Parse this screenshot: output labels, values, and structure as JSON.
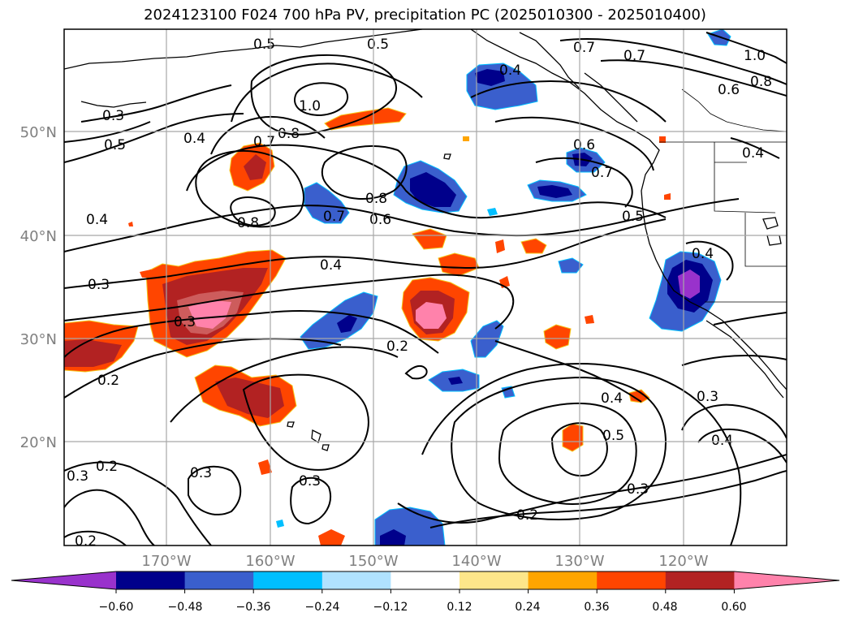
{
  "title": "2024123100 F024 700 hPa PV, precipitation PC (2025010300 - 2025010400)",
  "map": {
    "lat_labels": [
      "50°N",
      "40°N",
      "30°N",
      "20°N"
    ],
    "lon_labels": [
      "170°W",
      "160°W",
      "150°W",
      "140°W",
      "130°W",
      "120°W"
    ],
    "contour_labels": [
      "0.5",
      "0.5",
      "0.4",
      "0.7",
      "0.7",
      "1.0",
      "0.8",
      "0.6",
      "0.3",
      "0.4",
      "0.5",
      "1.0",
      "0.8",
      "0.7",
      "0.6",
      "0.7",
      "0.4",
      "0.8",
      "0.8",
      "0.7",
      "0.6",
      "0.5",
      "0.4",
      "0.4",
      "0.4",
      "0.3",
      "0.3",
      "0.2",
      "0.2",
      "0.4",
      "0.5",
      "0.3",
      "0.4",
      "0.3",
      "0.2",
      "0.3",
      "0.3",
      "0.2",
      "0.3",
      "0.2"
    ]
  },
  "colorbar": {
    "ticks": [
      "−0.60",
      "−0.48",
      "−0.36",
      "−0.24",
      "−0.12",
      "0.12",
      "0.24",
      "0.36",
      "0.48",
      "0.60"
    ],
    "colors": [
      "#9932cc",
      "#00008b",
      "#3a5fcd",
      "#00bfff",
      "#b0e2ff",
      "#ffffff",
      "#fde68a",
      "#ffa500",
      "#ff4500",
      "#b22222",
      "#ff82ab"
    ]
  }
}
